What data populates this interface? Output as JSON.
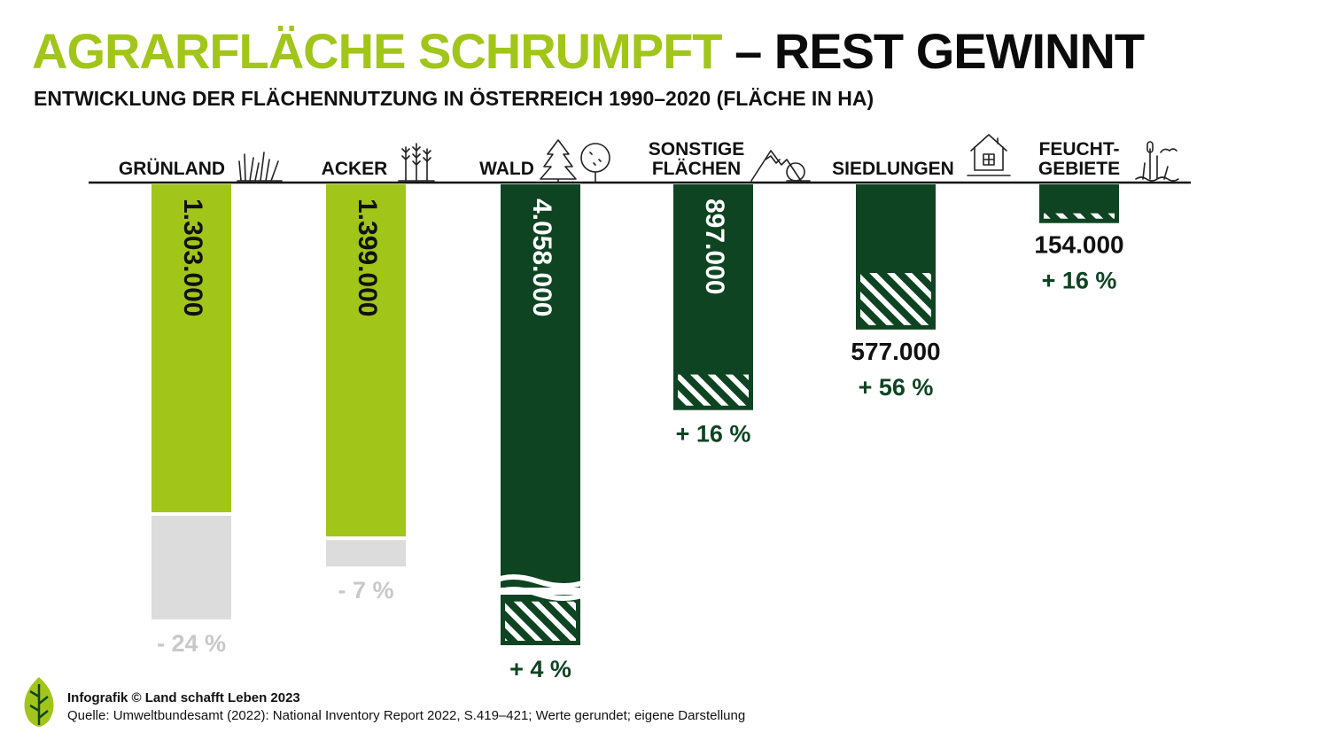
{
  "title": {
    "highlight": "AGRARFLÄCHE SCHRUMPFT",
    "rest": " – REST GEWINNT"
  },
  "subtitle": "ENTWICKLUNG DER FLÄCHENNUTZUNG IN ÖSTERREICH 1990–2020 (FLÄCHE IN HA)",
  "colors": {
    "agrar": "#a2c51a",
    "rest": "#0f4423",
    "loss": "#dcdcdc",
    "loss_text": "#c8c8c8",
    "gain_text": "#0f4423"
  },
  "icons": [
    "grass-icon",
    "wheat-icon",
    "trees-icon",
    "mountain-bush-icon",
    "house-icon",
    "reed-water-icon"
  ],
  "chart_data": {
    "type": "bar",
    "categories": [
      "GRÜNLAND",
      "ACKER",
      "WALD",
      "SONSTIGE FLÄCHEN",
      "SIEDLUNGEN",
      "FEUCHTGEBIETE"
    ],
    "category_lines": [
      [
        "GRÜNLAND"
      ],
      [
        "ACKER"
      ],
      [
        "WALD"
      ],
      [
        "SONSTIGE",
        "FLÄCHEN"
      ],
      [
        "SIEDLUNGEN"
      ],
      [
        "FEUCHT-",
        "GEBIETE"
      ]
    ],
    "values_2020": [
      1303000,
      1399000,
      4058000,
      897000,
      577000,
      154000
    ],
    "value_labels": [
      "1.303.000",
      "1.399.000",
      "4.058.000",
      "897.000",
      "577.000",
      "154.000"
    ],
    "change_labels": [
      "- 24 %",
      "- 7 %",
      "+ 4 %",
      "+ 16 %",
      "+ 56 %",
      "+ 16 %"
    ],
    "change_pct": [
      -24,
      -7,
      4,
      16,
      56,
      16
    ],
    "groups": [
      "agrar",
      "agrar",
      "rest",
      "rest",
      "rest",
      "rest"
    ],
    "axis_break": [
      false,
      false,
      true,
      false,
      false,
      false
    ]
  },
  "footer": {
    "credit": "Infografik © Land schafft Leben 2023",
    "source": "Quelle: Umweltbundesamt (2022): National Inventory Report 2022, S.419–421; Werte gerundet; eigene Darstellung"
  }
}
